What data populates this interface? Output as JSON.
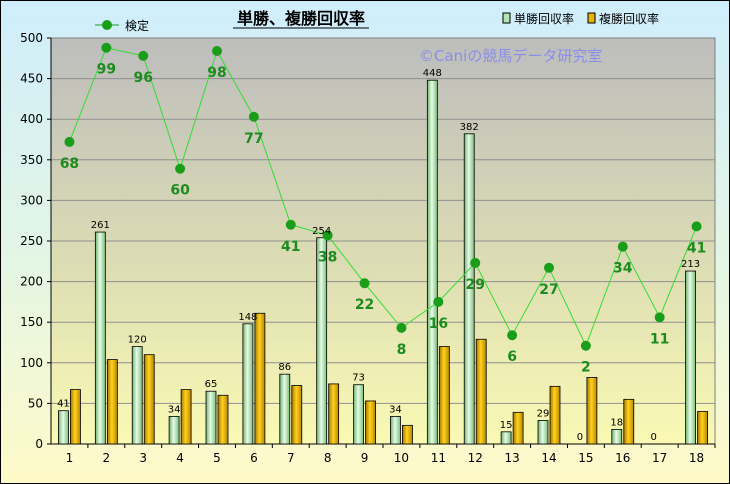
{
  "chart_data": {
    "type": "bar",
    "title": "単勝、複勝回収率",
    "watermark": "©Caniの競馬データ研究室",
    "categories": [
      "1",
      "2",
      "3",
      "4",
      "5",
      "6",
      "7",
      "8",
      "9",
      "10",
      "11",
      "12",
      "13",
      "14",
      "15",
      "16",
      "17",
      "18"
    ],
    "ylim": [
      0,
      500
    ],
    "yticks": [
      0,
      50,
      100,
      150,
      200,
      250,
      300,
      350,
      400,
      450,
      500
    ],
    "grid": "horizontal",
    "legend_position": "top",
    "series": [
      {
        "name": "単勝回収率",
        "kind": "bar",
        "color": "#b4e6b4",
        "values": [
          41,
          261,
          120,
          34,
          65,
          148,
          86,
          254,
          73,
          34,
          448,
          382,
          15,
          29,
          0,
          18,
          0,
          213
        ]
      },
      {
        "name": "複勝回収率",
        "kind": "bar",
        "color": "#e6b400",
        "values": [
          67,
          104,
          110,
          67,
          60,
          161,
          72,
          74,
          53,
          23,
          120,
          129,
          39,
          71,
          82,
          55,
          0,
          40
        ]
      },
      {
        "name": "検定",
        "kind": "line",
        "color": "#1a9e1a",
        "values": [
          372,
          488,
          478,
          339,
          484,
          403,
          270,
          257,
          198,
          143,
          175,
          223,
          134,
          217,
          121,
          243,
          156,
          268
        ],
        "labels": [
          68,
          99,
          96,
          60,
          98,
          77,
          41,
          38,
          22,
          8,
          16,
          29,
          6,
          27,
          2,
          34,
          11,
          41
        ]
      }
    ]
  }
}
